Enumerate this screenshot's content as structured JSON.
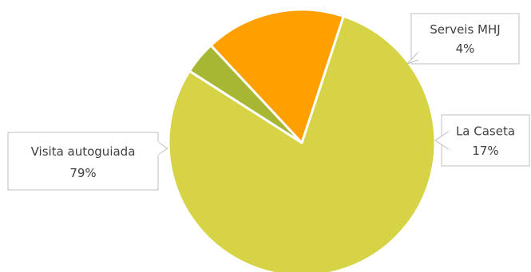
{
  "chart_data": {
    "type": "pie",
    "slices": [
      {
        "label": "Visita autoguiada",
        "value": 79,
        "display": "79%",
        "color": "#d6d346"
      },
      {
        "label": "Serveis MHJ",
        "value": 4,
        "display": "4%",
        "color": "#a8b733"
      },
      {
        "label": "La Caseta",
        "value": 17,
        "display": "17%",
        "color": "#ff9f00"
      }
    ],
    "start_angle_deg": 18.2,
    "clockwise": true,
    "data_labels": "callouts with category name and percentage",
    "legend": "none"
  }
}
